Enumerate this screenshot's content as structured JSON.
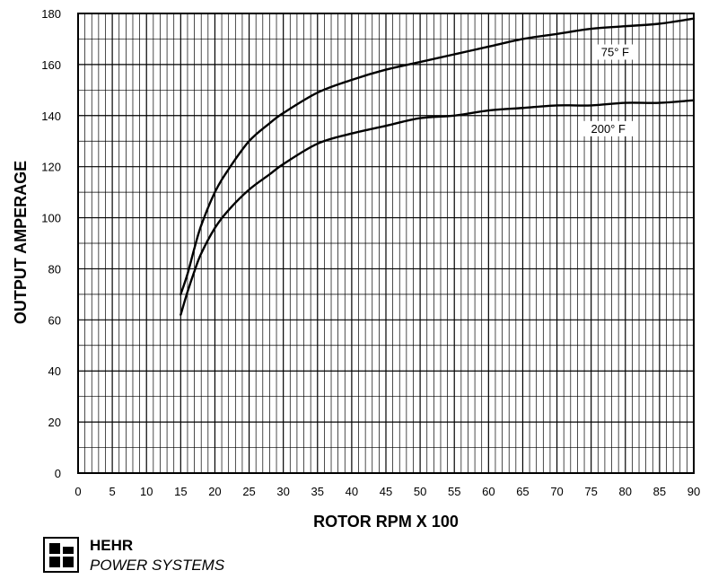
{
  "chart_data": {
    "type": "line",
    "xlabel": "ROTOR RPM X 100",
    "ylabel": "OUTPUT AMPERAGE",
    "xlim": [
      0,
      90
    ],
    "ylim": [
      0,
      180
    ],
    "x_ticks": [
      0,
      5,
      10,
      15,
      20,
      25,
      30,
      35,
      40,
      45,
      50,
      55,
      60,
      65,
      70,
      75,
      80,
      85,
      90
    ],
    "y_ticks": [
      0,
      20,
      40,
      60,
      80,
      100,
      120,
      140,
      160,
      180
    ],
    "grid": true,
    "series": [
      {
        "name": "75° F",
        "x": [
          15,
          16,
          17,
          18,
          20,
          22,
          25,
          28,
          30,
          35,
          40,
          45,
          50,
          55,
          60,
          65,
          70,
          75,
          80,
          85,
          90
        ],
        "y": [
          70,
          78,
          88,
          97,
          110,
          119,
          130,
          137,
          141,
          149,
          154,
          158,
          161,
          164,
          167,
          170,
          172,
          174,
          175,
          176,
          178
        ]
      },
      {
        "name": "200° F",
        "x": [
          15,
          16,
          17,
          18,
          20,
          22,
          25,
          28,
          30,
          35,
          40,
          45,
          50,
          55,
          60,
          65,
          70,
          75,
          80,
          85,
          90
        ],
        "y": [
          62,
          71,
          79,
          86,
          96,
          103,
          111,
          117,
          121,
          129,
          133,
          136,
          139,
          140,
          142,
          143,
          144,
          144,
          145,
          145,
          146
        ]
      }
    ]
  },
  "brand": {
    "name": "HEHR",
    "subtitle": "POWER SYSTEMS",
    "logo": "hehr-logo"
  }
}
